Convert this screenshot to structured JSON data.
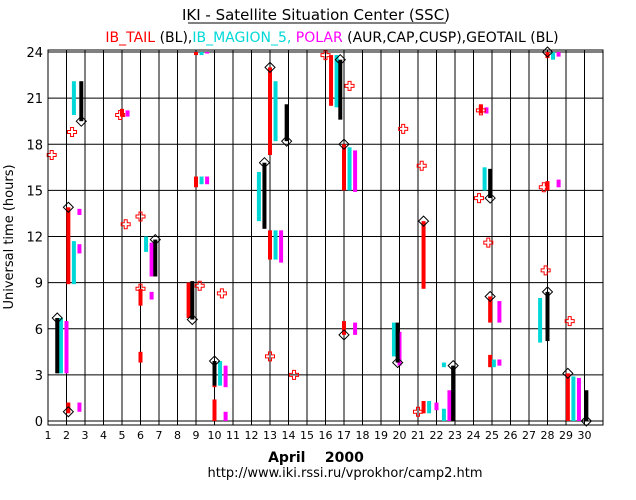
{
  "chart_data": {
    "type": "scatter",
    "title": "IKI - Satellite Situation Center (SSC)",
    "subtitle_parts": [
      {
        "text": "IB_TAIL",
        "color": "#ff0000"
      },
      {
        "text": " (BL),",
        "color": "#000000"
      },
      {
        "text": "IB_MAGION_5,",
        "color": "#00d8d8"
      },
      {
        "text": " POLAR",
        "color": "#ff00ff"
      },
      {
        "text": " (AUR,CAP,CUSP),GEOTAIL (BL)",
        "color": "#000000"
      }
    ],
    "xlabel": "April    2000",
    "ylabel": "Universal time (hours)",
    "url": "http://www.iki.rssi.ru/vprokhor/camp2.htm",
    "xlim": [
      1,
      31
    ],
    "ylim": [
      0,
      24
    ],
    "x_ticks": [
      1,
      2,
      3,
      4,
      5,
      6,
      7,
      8,
      9,
      10,
      11,
      12,
      13,
      14,
      15,
      16,
      17,
      18,
      19,
      20,
      21,
      22,
      23,
      24,
      25,
      26,
      27,
      28,
      29,
      30
    ],
    "y_ticks": [
      0,
      3,
      6,
      9,
      12,
      15,
      18,
      21,
      24
    ],
    "grid": true,
    "colors": {
      "ib_tail": "#ff0000",
      "magion": "#00d8d8",
      "polar": "#ff00ff",
      "geotail": "#000000",
      "marker": "#ff0000"
    },
    "series": [
      {
        "name": "IB_TAIL",
        "color": "#ff0000",
        "intervals": [
          [
            2.1,
            0.5,
            1.2
          ],
          [
            2.1,
            8.9,
            13.9
          ],
          [
            5.0,
            19.8,
            20.3
          ],
          [
            6.0,
            3.8,
            4.5
          ],
          [
            6.0,
            7.5,
            8.6
          ],
          [
            8.6,
            6.7,
            9.0
          ],
          [
            9.0,
            23.8,
            24
          ],
          [
            9.0,
            15.2,
            15.9
          ],
          [
            10.0,
            0,
            1.4
          ],
          [
            10.0,
            2.2,
            3.9
          ],
          [
            13.0,
            10.5,
            12.4
          ],
          [
            13.0,
            17.3,
            23.0
          ],
          [
            16.3,
            20.5,
            23.8
          ],
          [
            17.0,
            15.0,
            18.0
          ],
          [
            17.0,
            5.6,
            6.5
          ],
          [
            21.3,
            8.6,
            13.0
          ],
          [
            21.3,
            0.5,
            1.3
          ],
          [
            24.4,
            20.0,
            20.6
          ],
          [
            24.9,
            3.5,
            4.3
          ],
          [
            24.9,
            6.4,
            8.1
          ],
          [
            28.0,
            15.0,
            15.6
          ],
          [
            28.0,
            23.6,
            24
          ],
          [
            29.1,
            0,
            3.1
          ]
        ]
      },
      {
        "name": "IB_MAGION_5",
        "color": "#00d8d8",
        "intervals": [
          [
            1.7,
            3.1,
            6.7
          ],
          [
            2.4,
            8.9,
            11.7
          ],
          [
            2.4,
            19.9,
            22.1
          ],
          [
            6.3,
            11.0,
            12.0
          ],
          [
            9.3,
            15.4,
            15.9
          ],
          [
            9.3,
            23.8,
            24
          ],
          [
            10.3,
            2.3,
            3.9
          ],
          [
            12.4,
            13.0,
            16.2
          ],
          [
            13.3,
            10.5,
            12.4
          ],
          [
            13.3,
            18.2,
            22.1
          ],
          [
            16.6,
            20.4,
            23.8
          ],
          [
            17.3,
            15.0,
            17.8
          ],
          [
            19.7,
            4.2,
            6.4
          ],
          [
            21.6,
            0.5,
            1.3
          ],
          [
            22.4,
            0,
            0.8
          ],
          [
            22.4,
            3.5,
            3.8
          ],
          [
            24.6,
            15.0,
            16.5
          ],
          [
            25.1,
            3.5,
            4.0
          ],
          [
            27.6,
            5.1,
            8.0
          ],
          [
            28.3,
            23.5,
            24
          ],
          [
            29.4,
            0,
            2.9
          ]
        ]
      },
      {
        "name": "POLAR",
        "color": "#ff00ff",
        "intervals": [
          [
            2.0,
            3.1,
            6.5
          ],
          [
            2.7,
            0.6,
            1.2
          ],
          [
            2.7,
            13.4,
            13.8
          ],
          [
            2.7,
            10.9,
            11.5
          ],
          [
            5.3,
            19.8,
            20.2
          ],
          [
            6.6,
            7.9,
            8.4
          ],
          [
            6.6,
            9.4,
            11.6
          ],
          [
            9.6,
            15.4,
            15.9
          ],
          [
            9.6,
            23.9,
            24
          ],
          [
            10.6,
            0,
            0.6
          ],
          [
            10.6,
            2.2,
            3.6
          ],
          [
            13.6,
            10.3,
            12.4
          ],
          [
            17.6,
            14.9,
            17.6
          ],
          [
            17.6,
            5.6,
            6.4
          ],
          [
            20.0,
            3.6,
            5.8
          ],
          [
            22.0,
            0.7,
            1.2
          ],
          [
            22.7,
            0,
            2.0
          ],
          [
            25.4,
            6.4,
            7.8
          ],
          [
            25.4,
            3.6,
            4.0
          ],
          [
            28.6,
            15.2,
            15.7
          ],
          [
            28.6,
            23.7,
            24
          ],
          [
            29.7,
            0,
            2.8
          ],
          [
            24.7,
            20.0,
            20.4
          ]
        ]
      },
      {
        "name": "GEOTAIL",
        "color": "#000000",
        "intervals": [
          [
            1.5,
            3.1,
            6.7
          ],
          [
            2.8,
            19.5,
            22.1
          ],
          [
            6.8,
            9.4,
            11.8
          ],
          [
            8.8,
            6.6,
            9.1
          ],
          [
            10.0,
            2.3,
            3.9
          ],
          [
            12.7,
            12.5,
            16.8
          ],
          [
            13.9,
            18.2,
            20.6
          ],
          [
            16.8,
            19.6,
            23.5
          ],
          [
            19.9,
            3.8,
            6.4
          ],
          [
            22.9,
            0,
            3.6
          ],
          [
            24.9,
            14.5,
            16.4
          ],
          [
            28.0,
            5.2,
            8.4
          ],
          [
            30.1,
            0,
            2.0
          ]
        ]
      }
    ],
    "diamonds": [
      [
        2.1,
        13.9
      ],
      [
        2.8,
        19.5
      ],
      [
        1.5,
        6.7
      ],
      [
        2.1,
        0.6
      ],
      [
        6.8,
        11.8
      ],
      [
        8.8,
        6.6
      ],
      [
        10.0,
        3.9
      ],
      [
        12.7,
        16.8
      ],
      [
        13.0,
        23.0
      ],
      [
        13.9,
        18.2
      ],
      [
        16.8,
        23.5
      ],
      [
        17.0,
        18.0
      ],
      [
        17.0,
        5.6
      ],
      [
        19.9,
        3.8
      ],
      [
        21.3,
        13.0
      ],
      [
        22.9,
        3.6
      ],
      [
        24.9,
        14.5
      ],
      [
        24.9,
        8.1
      ],
      [
        28.0,
        8.4
      ],
      [
        28.0,
        24
      ],
      [
        29.1,
        3.1
      ],
      [
        30.1,
        0
      ]
    ],
    "crosses": [
      [
        1.2,
        17.3
      ],
      [
        2.3,
        18.8
      ],
      [
        5.2,
        12.8
      ],
      [
        6.0,
        13.3
      ],
      [
        6.0,
        8.6
      ],
      [
        9.2,
        8.8
      ],
      [
        10.4,
        8.3
      ],
      [
        13.0,
        4.2
      ],
      [
        14.3,
        3.0
      ],
      [
        16.0,
        23.8
      ],
      [
        17.3,
        21.8
      ],
      [
        20.2,
        19.0
      ],
      [
        21.2,
        16.6
      ],
      [
        21.0,
        0.6
      ],
      [
        24.3,
        14.5
      ],
      [
        24.8,
        11.6
      ],
      [
        24.4,
        20.2
      ],
      [
        27.9,
        9.8
      ],
      [
        27.8,
        15.2
      ],
      [
        29.2,
        6.5
      ],
      [
        4.9,
        19.9
      ]
    ]
  }
}
